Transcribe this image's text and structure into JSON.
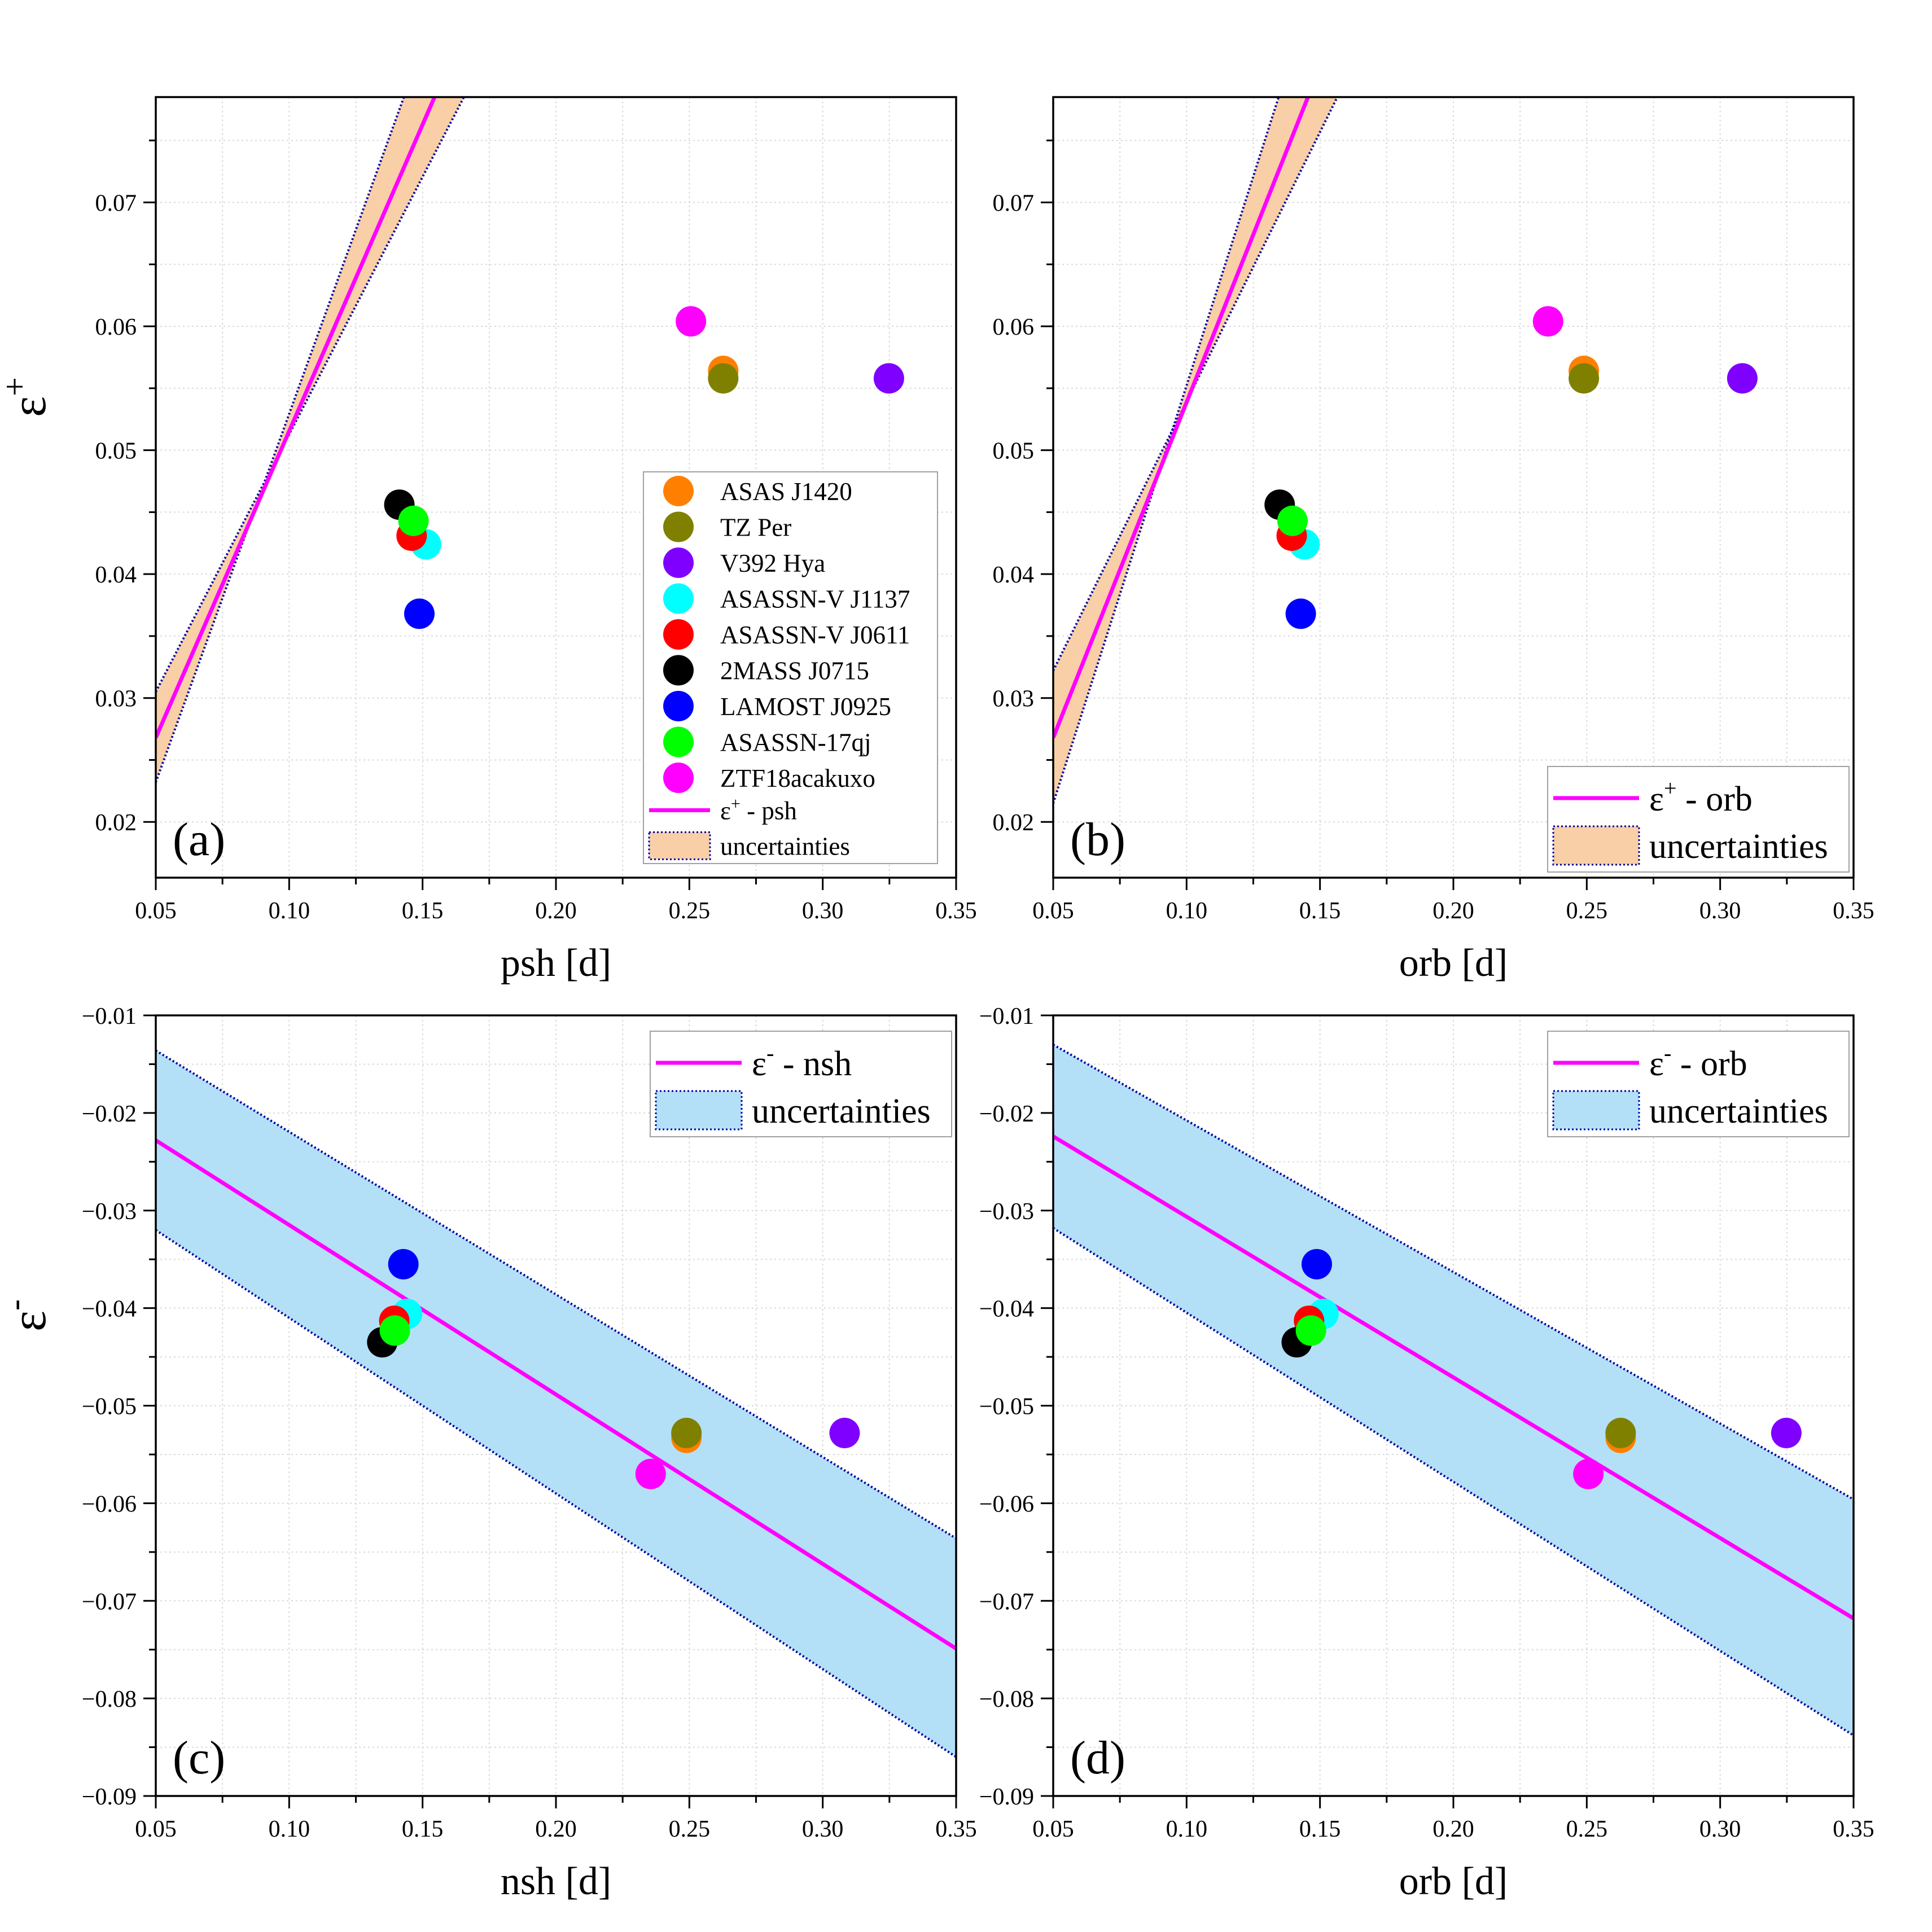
{
  "colors": {
    "ASAS J1420": "#ff8000",
    "TZ Per": "#808000",
    "V392 Hya": "#8000ff",
    "ASASSN-V J1137": "#00ffff",
    "ASASSN-V J0611": "#ff0000",
    "2MASS J0715": "#000000",
    "LAMOST J0925": "#0000ff",
    "ASASSN-17qj": "#00ff00",
    "ZTF18acakuxo": "#ff00ff",
    "fit_line": "#ff00ff",
    "band_orange": "#f8cfa6",
    "band_blue": "#b3e0f7",
    "band_edge": "#0000a0",
    "grid": "#d9d9d9"
  },
  "chart_data": [
    {
      "panel": "(a)",
      "type": "scatter",
      "xlabel": "psh [d]",
      "ylabel": "ε+",
      "xlim": [
        0.05,
        0.35
      ],
      "ylim": [
        0.0155,
        0.0785
      ],
      "xticks": [
        0.05,
        0.1,
        0.15,
        0.2,
        0.25,
        0.3,
        0.35
      ],
      "xtick_labels": [
        "0.05",
        "0.10",
        "0.15",
        "0.20",
        "0.25",
        "0.30",
        "0.35"
      ],
      "yticks": [
        0.02,
        0.03,
        0.04,
        0.05,
        0.06,
        0.07
      ],
      "ytick_labels": [
        "0.02",
        "0.03",
        "0.04",
        "0.05",
        "0.06",
        "0.07"
      ],
      "points": [
        {
          "name": "ASAS J1420",
          "x": 0.2627,
          "y": 0.0564
        },
        {
          "name": "TZ Per",
          "x": 0.2627,
          "y": 0.0558
        },
        {
          "name": "V392 Hya",
          "x": 0.3248,
          "y": 0.0558
        },
        {
          "name": "ASASSN-V J1137",
          "x": 0.1513,
          "y": 0.0424
        },
        {
          "name": "ASASSN-V J0611",
          "x": 0.1459,
          "y": 0.0431
        },
        {
          "name": "2MASS J0715",
          "x": 0.1413,
          "y": 0.0456
        },
        {
          "name": "LAMOST J0925",
          "x": 0.1488,
          "y": 0.0368
        },
        {
          "name": "ASASSN-17qj",
          "x": 0.1466,
          "y": 0.0443
        },
        {
          "name": "ZTF18acakuxo",
          "x": 0.2506,
          "y": 0.0604
        }
      ],
      "fit": {
        "label": "psh",
        "x": [
          0.05,
          0.1545
        ],
        "y": [
          0.0268,
          0.0785
        ]
      },
      "band_upper": {
        "x": [
          0.05,
          0.1655
        ],
        "y": [
          0.0305,
          0.0785
        ]
      },
      "band_lower": {
        "x": [
          0.05,
          0.143
        ],
        "y": [
          0.0232,
          0.0785
        ]
      },
      "band_color": "band_orange",
      "legend": "full"
    },
    {
      "panel": "(b)",
      "type": "scatter",
      "xlabel": "orb [d]",
      "ylabel": "",
      "xlim": [
        0.05,
        0.35
      ],
      "ylim": [
        0.0155,
        0.0785
      ],
      "xticks": [
        0.05,
        0.1,
        0.15,
        0.2,
        0.25,
        0.3,
        0.35
      ],
      "xtick_labels": [
        "0.05",
        "0.10",
        "0.15",
        "0.20",
        "0.25",
        "0.30",
        "0.35"
      ],
      "yticks": [
        0.02,
        0.03,
        0.04,
        0.05,
        0.06,
        0.07
      ],
      "ytick_labels": [
        "0.02",
        "0.03",
        "0.04",
        "0.05",
        "0.06",
        "0.07"
      ],
      "points": [
        {
          "name": "ASAS J1420",
          "x": 0.2489,
          "y": 0.0564
        },
        {
          "name": "TZ Per",
          "x": 0.2489,
          "y": 0.0558
        },
        {
          "name": "V392 Hya",
          "x": 0.3083,
          "y": 0.0558
        },
        {
          "name": "ASASSN-V J1137",
          "x": 0.1442,
          "y": 0.0424
        },
        {
          "name": "ASASSN-V J0611",
          "x": 0.1394,
          "y": 0.0431
        },
        {
          "name": "2MASS J0715",
          "x": 0.1349,
          "y": 0.0456
        },
        {
          "name": "LAMOST J0925",
          "x": 0.1428,
          "y": 0.0368
        },
        {
          "name": "ASASSN-17qj",
          "x": 0.1397,
          "y": 0.0443
        },
        {
          "name": "ZTF18acakuxo",
          "x": 0.2355,
          "y": 0.0604
        }
      ],
      "fit": {
        "label": "orb",
        "x": [
          0.05,
          0.1455
        ],
        "y": [
          0.0268,
          0.0785
        ]
      },
      "band_upper": {
        "x": [
          0.05,
          0.1565
        ],
        "y": [
          0.0322,
          0.0785
        ]
      },
      "band_lower": {
        "x": [
          0.05,
          0.1345
        ],
        "y": [
          0.0215,
          0.0785
        ]
      },
      "band_color": "band_orange",
      "legend": "fit",
      "legend_position": "bottom-right"
    },
    {
      "panel": "(c)",
      "type": "scatter",
      "xlabel": "nsh [d]",
      "ylabel": "ε-",
      "xlim": [
        0.05,
        0.35
      ],
      "ylim": [
        -0.09,
        -0.01
      ],
      "xticks": [
        0.05,
        0.1,
        0.15,
        0.2,
        0.25,
        0.3,
        0.35
      ],
      "xtick_labels": [
        "0.05",
        "0.10",
        "0.15",
        "0.20",
        "0.25",
        "0.30",
        "0.35"
      ],
      "yticks": [
        -0.09,
        -0.08,
        -0.07,
        -0.06,
        -0.05,
        -0.04,
        -0.03,
        -0.02,
        -0.01
      ],
      "ytick_labels": [
        "−0.09",
        "−0.08",
        "−0.07",
        "−0.06",
        "−0.05",
        "−0.04",
        "−0.03",
        "−0.02",
        "−0.01"
      ],
      "points": [
        {
          "name": "ASAS J1420",
          "x": 0.2489,
          "y": -0.0533
        },
        {
          "name": "TZ Per",
          "x": 0.2489,
          "y": -0.0528
        },
        {
          "name": "V392 Hya",
          "x": 0.3082,
          "y": -0.0528
        },
        {
          "name": "ASASSN-V J1137",
          "x": 0.1442,
          "y": -0.0406
        },
        {
          "name": "ASASSN-V J0611",
          "x": 0.1394,
          "y": -0.0413
        },
        {
          "name": "2MASS J0715",
          "x": 0.1349,
          "y": -0.0435
        },
        {
          "name": "LAMOST J0925",
          "x": 0.1428,
          "y": -0.0355
        },
        {
          "name": "ASASSN-17qj",
          "x": 0.1396,
          "y": -0.0423
        },
        {
          "name": "ZTF18acakuxo",
          "x": 0.2355,
          "y": -0.057
        }
      ],
      "fit": {
        "label": "nsh",
        "x": [
          0.05,
          0.35
        ],
        "y": [
          -0.0228,
          -0.0749
        ]
      },
      "band_upper": {
        "x": [
          0.05,
          0.35
        ],
        "y": [
          -0.0136,
          -0.0636
        ]
      },
      "band_lower": {
        "x": [
          0.05,
          0.35
        ],
        "y": [
          -0.032,
          -0.086
        ]
      },
      "band_color": "band_blue",
      "legend": "fit",
      "legend_position": "top-right"
    },
    {
      "panel": "(d)",
      "type": "scatter",
      "xlabel": "orb [d]",
      "ylabel": "",
      "xlim": [
        0.05,
        0.35
      ],
      "ylim": [
        -0.09,
        -0.01
      ],
      "xticks": [
        0.05,
        0.1,
        0.15,
        0.2,
        0.25,
        0.3,
        0.35
      ],
      "xtick_labels": [
        "0.05",
        "0.10",
        "0.15",
        "0.20",
        "0.25",
        "0.30",
        "0.35"
      ],
      "yticks": [
        -0.09,
        -0.08,
        -0.07,
        -0.06,
        -0.05,
        -0.04,
        -0.03,
        -0.02,
        -0.01
      ],
      "ytick_labels": [
        "−0.09",
        "−0.08",
        "−0.07",
        "−0.06",
        "−0.05",
        "−0.04",
        "−0.03",
        "−0.02",
        "−0.01"
      ],
      "points": [
        {
          "name": "ASAS J1420",
          "x": 0.2627,
          "y": -0.0533
        },
        {
          "name": "TZ Per",
          "x": 0.2627,
          "y": -0.0528
        },
        {
          "name": "V392 Hya",
          "x": 0.3248,
          "y": -0.0528
        },
        {
          "name": "ASASSN-V J1137",
          "x": 0.1513,
          "y": -0.0406
        },
        {
          "name": "ASASSN-V J0611",
          "x": 0.1459,
          "y": -0.0413
        },
        {
          "name": "2MASS J0715",
          "x": 0.1413,
          "y": -0.0435
        },
        {
          "name": "LAMOST J0925",
          "x": 0.1488,
          "y": -0.0355
        },
        {
          "name": "ASASSN-17qj",
          "x": 0.1466,
          "y": -0.0423
        },
        {
          "name": "ZTF18acakuxo",
          "x": 0.2506,
          "y": -0.057
        }
      ],
      "fit": {
        "label": "orb",
        "x": [
          0.05,
          0.35
        ],
        "y": [
          -0.0224,
          -0.0718
        ]
      },
      "band_upper": {
        "x": [
          0.05,
          0.35
        ],
        "y": [
          -0.013,
          -0.0596
        ]
      },
      "band_lower": {
        "x": [
          0.05,
          0.35
        ],
        "y": [
          -0.0318,
          -0.0838
        ]
      },
      "band_color": "band_blue",
      "legend": "fit",
      "legend_position": "top-right"
    }
  ],
  "legend_items": [
    "ASAS J1420",
    "TZ Per",
    "V392 Hya",
    "ASASSN-V J1137",
    "ASASSN-V J0611",
    "2MASS J0715",
    "LAMOST J0925",
    "ASASSN-17qj",
    "ZTF18acakuxo"
  ],
  "legend_uncertainties": "uncertainties",
  "epsilon_symbol": "ε",
  "sup_plus": "+",
  "sup_minus": "-",
  "fit_label_separator": " - "
}
